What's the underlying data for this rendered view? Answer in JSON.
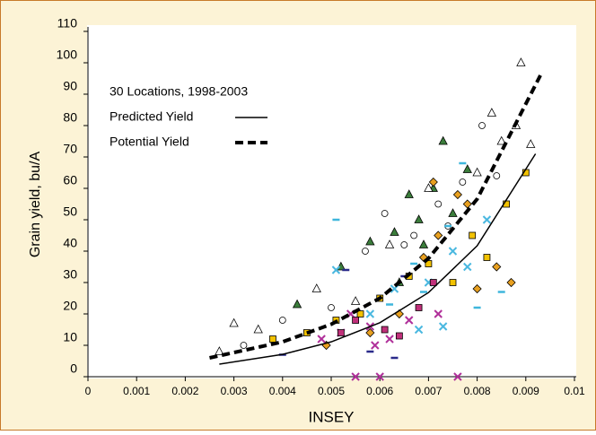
{
  "chart_data": {
    "type": "scatter",
    "x_label": "INSEY",
    "y_label": "Grain yield, bu/A",
    "annotation": "30 Locations, 1998-2003",
    "xlim": [
      0,
      0.01
    ],
    "xticks": [
      0,
      0.001,
      0.002,
      0.003,
      0.004,
      0.005,
      0.006,
      0.007,
      0.008,
      0.009,
      0.01
    ],
    "ylim": [
      0,
      110
    ],
    "yticks": [
      0,
      10,
      20,
      30,
      40,
      50,
      60,
      70,
      80,
      90,
      100,
      110
    ],
    "series": [
      {
        "marker": "triangle",
        "color": "#3b7d3b",
        "x": [
          0.0043,
          0.0052,
          0.0058,
          0.0063,
          0.0066,
          0.0068,
          0.0071,
          0.0073,
          0.0075,
          0.0078,
          0.0069,
          0.0064
        ],
        "values": [
          23,
          35,
          43,
          46,
          58,
          50,
          60,
          75,
          52,
          66,
          42,
          30
        ]
      },
      {
        "marker": "triangle",
        "color": "#ffffff",
        "x": [
          0.0027,
          0.003,
          0.0035,
          0.0047,
          0.0055,
          0.0062,
          0.007,
          0.008,
          0.0085,
          0.0089,
          0.0091,
          0.0088,
          0.0083
        ],
        "values": [
          8,
          17,
          15,
          28,
          24,
          42,
          60,
          65,
          75,
          100,
          74,
          80,
          84
        ]
      },
      {
        "marker": "circle",
        "color": "#ffffff",
        "x": [
          0.0032,
          0.004,
          0.005,
          0.0057,
          0.0061,
          0.0067,
          0.0072,
          0.0077,
          0.0081,
          0.0084,
          0.0065,
          0.0074
        ],
        "values": [
          10,
          18,
          22,
          40,
          52,
          45,
          55,
          62,
          80,
          64,
          42,
          48
        ]
      },
      {
        "marker": "square",
        "color": "#f2c200",
        "x": [
          0.0038,
          0.0045,
          0.0051,
          0.0056,
          0.006,
          0.0066,
          0.007,
          0.0075,
          0.0079,
          0.0086,
          0.009,
          0.0082
        ],
        "values": [
          12,
          14,
          18,
          20,
          25,
          32,
          36,
          30,
          45,
          55,
          65,
          38
        ]
      },
      {
        "marker": "diamond",
        "color": "#e8a020",
        "x": [
          0.0049,
          0.0058,
          0.0064,
          0.0069,
          0.0072,
          0.0076,
          0.008,
          0.0084,
          0.0087,
          0.0071,
          0.0078
        ],
        "values": [
          10,
          14,
          20,
          38,
          45,
          58,
          28,
          35,
          30,
          62,
          55
        ]
      },
      {
        "marker": "cross",
        "color": "#b0309a",
        "x": [
          0.0048,
          0.0052,
          0.0055,
          0.0058,
          0.006,
          0.0062,
          0.0066,
          0.0072,
          0.0076,
          0.0054,
          0.0059
        ],
        "values": [
          12,
          14,
          0,
          16,
          0,
          12,
          18,
          20,
          0,
          20,
          10
        ]
      },
      {
        "marker": "cross",
        "color": "#4ab8e0",
        "x": [
          0.0051,
          0.0058,
          0.0063,
          0.0068,
          0.0073,
          0.0078,
          0.0082,
          0.0075,
          0.007
        ],
        "values": [
          34,
          20,
          28,
          15,
          16,
          35,
          50,
          40,
          30
        ]
      },
      {
        "marker": "dash",
        "color": "#3fb6dc",
        "x": [
          0.0051,
          0.0062,
          0.0067,
          0.0074,
          0.008,
          0.0085,
          0.0077,
          0.0069
        ],
        "values": [
          50,
          23,
          36,
          48,
          22,
          27,
          68,
          27
        ]
      },
      {
        "marker": "dash",
        "color": "#2a2a8a",
        "x": [
          0.004,
          0.0053,
          0.0058,
          0.0063,
          0.0065
        ],
        "values": [
          7,
          34,
          8,
          6,
          32
        ]
      },
      {
        "marker": "square",
        "color": "#c0307a",
        "x": [
          0.0052,
          0.0055,
          0.0061,
          0.0064,
          0.0068,
          0.0071
        ],
        "values": [
          14,
          18,
          15,
          13,
          22,
          30
        ]
      },
      {
        "name": "Predicted Yield",
        "marker": "line",
        "color": "#000000",
        "dash": false,
        "x": [
          0.0027,
          0.004,
          0.005,
          0.006,
          0.007,
          0.008,
          0.0092
        ],
        "values": [
          4,
          7.1,
          11.1,
          17.2,
          26.8,
          41.7,
          71
        ]
      },
      {
        "name": "Potential Yield",
        "marker": "line",
        "color": "#000000",
        "dash": true,
        "x": [
          0.0025,
          0.004,
          0.005,
          0.006,
          0.007,
          0.008,
          0.0093
        ],
        "values": [
          6,
          11.1,
          16.7,
          25,
          37.7,
          56.6,
          96
        ]
      }
    ]
  }
}
